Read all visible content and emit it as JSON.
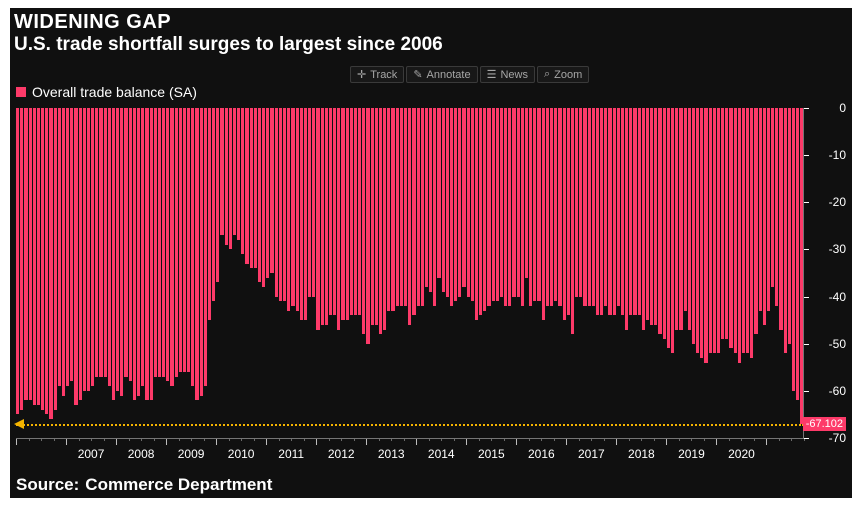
{
  "chart": {
    "type": "bar",
    "title": "WIDENING GAP",
    "subtitle": "U.S. trade shortfall surges to largest since 2006",
    "source_label": "Source:",
    "source_value": "Commerce Department",
    "legend_label": "Overall trade balance (SA)",
    "background_color": "#101010",
    "bar_color": "#fd3a69",
    "text_color": "#ffffff",
    "toolbar_color": "#a6a6a6",
    "ref_line_color": "#f4b400",
    "tag_bg_color": "#fd3a69",
    "tag_value": "-67.102",
    "font_family": "Arial, Helvetica, sans-serif",
    "title_fontsize": 20,
    "subtitle_fontsize": 19,
    "source_fontsize": 17,
    "legend_fontsize": 14,
    "tick_fontsize": 12,
    "y": {
      "min": -70,
      "max": 0,
      "ticks": [
        0,
        -10,
        -20,
        -30,
        -40,
        -50,
        -60,
        -70
      ]
    },
    "x": {
      "start_year": 2006,
      "end_year": 2021,
      "label_years": [
        2007,
        2008,
        2009,
        2010,
        2011,
        2012,
        2013,
        2014,
        2015,
        2016,
        2017,
        2018,
        2019,
        2020
      ],
      "quarter_minor_ticks": true
    },
    "reference_value": -67.1,
    "values": [
      -65,
      -64,
      -62,
      -62,
      -63,
      -63,
      -64,
      -65,
      -66,
      -64,
      -59,
      -61,
      -59,
      -58,
      -63,
      -62,
      -60,
      -60,
      -59,
      -57,
      -57,
      -57,
      -59,
      -62,
      -60,
      -61,
      -57,
      -58,
      -62,
      -61,
      -59,
      -62,
      -62,
      -57,
      -57,
      -57,
      -58,
      -59,
      -57,
      -56,
      -56,
      -56,
      -59,
      -62,
      -61,
      -59,
      -45,
      -41,
      -37,
      -27,
      -29,
      -30,
      -27,
      -28,
      -31,
      -33,
      -34,
      -34,
      -37,
      -38,
      -36,
      -35,
      -40,
      -41,
      -41,
      -43,
      -42,
      -43,
      -45,
      -45,
      -40,
      -40,
      -47,
      -46,
      -46,
      -44,
      -44,
      -47,
      -45,
      -45,
      -44,
      -44,
      -44,
      -48,
      -50,
      -46,
      -46,
      -48,
      -47,
      -43,
      -43,
      -42,
      -42,
      -42,
      -46,
      -44,
      -42,
      -42,
      -38,
      -39,
      -42,
      -36,
      -39,
      -40,
      -42,
      -41,
      -40,
      -38,
      -40,
      -41,
      -45,
      -44,
      -43,
      -42,
      -41,
      -41,
      -40,
      -42,
      -42,
      -40,
      -40,
      -42,
      -36,
      -42,
      -41,
      -41,
      -45,
      -42,
      -42,
      -41,
      -42,
      -45,
      -44,
      -48,
      -40,
      -40,
      -42,
      -42,
      -42,
      -44,
      -44,
      -42,
      -44,
      -44,
      -42,
      -44,
      -47,
      -44,
      -44,
      -44,
      -47,
      -45,
      -46,
      -46,
      -48,
      -49,
      -51,
      -52,
      -47,
      -47,
      -43,
      -47,
      -50,
      -52,
      -53,
      -54,
      -52,
      -52,
      -52,
      -49,
      -49,
      -51,
      -52,
      -54,
      -52,
      -52,
      -53,
      -48,
      -43,
      -46,
      -43,
      -38,
      -42,
      -47,
      -52,
      -50,
      -60,
      -62,
      -67
    ]
  },
  "toolbar": {
    "track": "Track",
    "annotate": "Annotate",
    "news": "News",
    "zoom": "Zoom"
  }
}
